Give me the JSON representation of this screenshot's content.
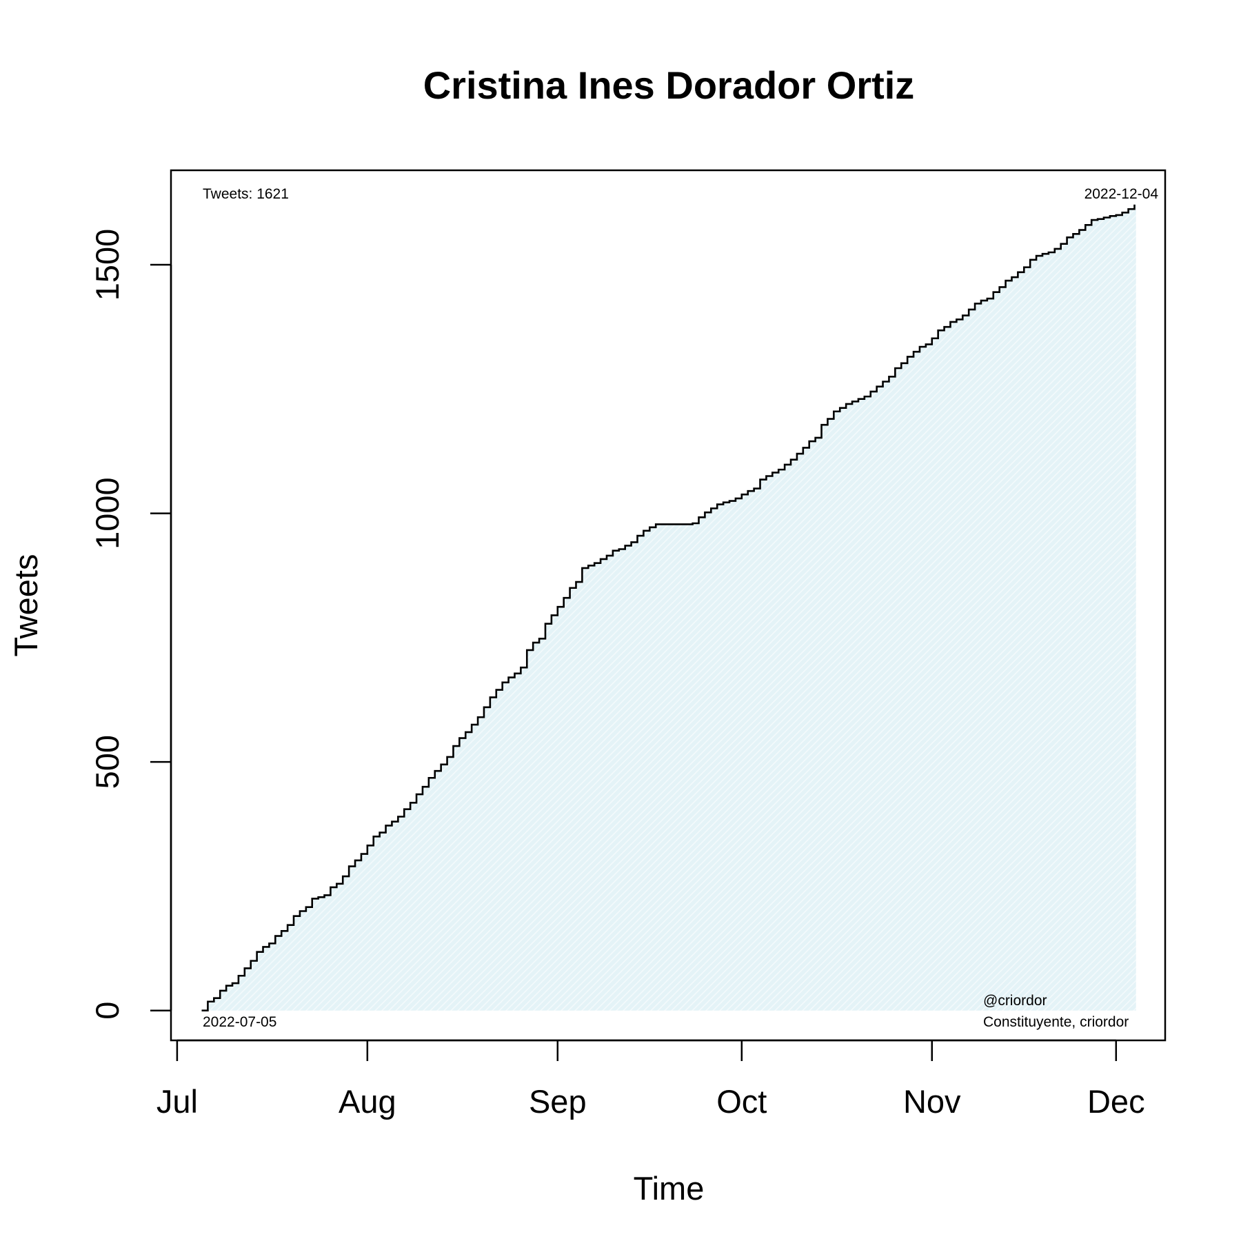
{
  "chart_data": {
    "type": "area",
    "title": "Cristina Ines Dorador Ortiz",
    "xlabel": "Time",
    "ylabel": "Tweets",
    "x_ticks": [
      {
        "label": "Jul",
        "date": "2022-07-01"
      },
      {
        "label": "Aug",
        "date": "2022-08-01"
      },
      {
        "label": "Sep",
        "date": "2022-09-01"
      },
      {
        "label": "Oct",
        "date": "2022-10-01"
      },
      {
        "label": "Nov",
        "date": "2022-11-01"
      },
      {
        "label": "Dec",
        "date": "2022-12-01"
      }
    ],
    "y_ticks": [
      0,
      500,
      1000,
      1500
    ],
    "xlim": [
      "2022-06-30",
      "2022-12-09"
    ],
    "ylim": [
      -60,
      1690
    ],
    "grid": false,
    "line_color": "#000000",
    "fill_color": "#e4f3f7",
    "annotations": {
      "top_left": "Tweets: 1621",
      "top_right": "2022-12-04",
      "bottom_left": "2022-07-05",
      "bottom_right_line1": "@criordor",
      "bottom_right_line2": "Constituyente, criordor"
    },
    "series": [
      {
        "points": [
          [
            "2022-07-05",
            0
          ],
          [
            "2022-07-06",
            18
          ],
          [
            "2022-07-07",
            25
          ],
          [
            "2022-07-08",
            40
          ],
          [
            "2022-07-09",
            50
          ],
          [
            "2022-07-10",
            55
          ],
          [
            "2022-07-11",
            70
          ],
          [
            "2022-07-12",
            85
          ],
          [
            "2022-07-13",
            100
          ],
          [
            "2022-07-14",
            118
          ],
          [
            "2022-07-15",
            128
          ],
          [
            "2022-07-16",
            135
          ],
          [
            "2022-07-17",
            150
          ],
          [
            "2022-07-18",
            160
          ],
          [
            "2022-07-19",
            172
          ],
          [
            "2022-07-20",
            190
          ],
          [
            "2022-07-21",
            200
          ],
          [
            "2022-07-22",
            208
          ],
          [
            "2022-07-23",
            225
          ],
          [
            "2022-07-24",
            228
          ],
          [
            "2022-07-25",
            232
          ],
          [
            "2022-07-26",
            248
          ],
          [
            "2022-07-27",
            255
          ],
          [
            "2022-07-28",
            270
          ],
          [
            "2022-07-29",
            290
          ],
          [
            "2022-07-30",
            302
          ],
          [
            "2022-07-31",
            315
          ],
          [
            "2022-08-01",
            332
          ],
          [
            "2022-08-02",
            350
          ],
          [
            "2022-08-03",
            358
          ],
          [
            "2022-08-04",
            372
          ],
          [
            "2022-08-05",
            380
          ],
          [
            "2022-08-06",
            390
          ],
          [
            "2022-08-07",
            405
          ],
          [
            "2022-08-08",
            418
          ],
          [
            "2022-08-09",
            435
          ],
          [
            "2022-08-10",
            450
          ],
          [
            "2022-08-11",
            468
          ],
          [
            "2022-08-12",
            482
          ],
          [
            "2022-08-13",
            495
          ],
          [
            "2022-08-14",
            510
          ],
          [
            "2022-08-15",
            532
          ],
          [
            "2022-08-16",
            548
          ],
          [
            "2022-08-17",
            560
          ],
          [
            "2022-08-18",
            575
          ],
          [
            "2022-08-19",
            590
          ],
          [
            "2022-08-20",
            610
          ],
          [
            "2022-08-21",
            630
          ],
          [
            "2022-08-22",
            645
          ],
          [
            "2022-08-23",
            660
          ],
          [
            "2022-08-24",
            670
          ],
          [
            "2022-08-25",
            678
          ],
          [
            "2022-08-26",
            690
          ],
          [
            "2022-08-27",
            725
          ],
          [
            "2022-08-28",
            740
          ],
          [
            "2022-08-29",
            748
          ],
          [
            "2022-08-30",
            778
          ],
          [
            "2022-08-31",
            795
          ],
          [
            "2022-09-01",
            812
          ],
          [
            "2022-09-02",
            830
          ],
          [
            "2022-09-03",
            850
          ],
          [
            "2022-09-04",
            862
          ],
          [
            "2022-09-05",
            890
          ],
          [
            "2022-09-06",
            895
          ],
          [
            "2022-09-07",
            900
          ],
          [
            "2022-09-08",
            908
          ],
          [
            "2022-09-09",
            915
          ],
          [
            "2022-09-10",
            925
          ],
          [
            "2022-09-11",
            928
          ],
          [
            "2022-09-12",
            935
          ],
          [
            "2022-09-13",
            942
          ],
          [
            "2022-09-14",
            955
          ],
          [
            "2022-09-15",
            965
          ],
          [
            "2022-09-16",
            972
          ],
          [
            "2022-09-17",
            978
          ],
          [
            "2022-09-18",
            978
          ],
          [
            "2022-09-19",
            978
          ],
          [
            "2022-09-20",
            978
          ],
          [
            "2022-09-21",
            978
          ],
          [
            "2022-09-22",
            978
          ],
          [
            "2022-09-23",
            980
          ],
          [
            "2022-09-24",
            992
          ],
          [
            "2022-09-25",
            1002
          ],
          [
            "2022-09-26",
            1010
          ],
          [
            "2022-09-27",
            1018
          ],
          [
            "2022-09-28",
            1022
          ],
          [
            "2022-09-29",
            1025
          ],
          [
            "2022-09-30",
            1030
          ],
          [
            "2022-10-01",
            1038
          ],
          [
            "2022-10-02",
            1045
          ],
          [
            "2022-10-03",
            1050
          ],
          [
            "2022-10-04",
            1068
          ],
          [
            "2022-10-05",
            1075
          ],
          [
            "2022-10-06",
            1082
          ],
          [
            "2022-10-07",
            1088
          ],
          [
            "2022-10-08",
            1098
          ],
          [
            "2022-10-09",
            1108
          ],
          [
            "2022-10-10",
            1120
          ],
          [
            "2022-10-11",
            1132
          ],
          [
            "2022-10-12",
            1145
          ],
          [
            "2022-10-13",
            1152
          ],
          [
            "2022-10-14",
            1178
          ],
          [
            "2022-10-15",
            1190
          ],
          [
            "2022-10-16",
            1205
          ],
          [
            "2022-10-17",
            1212
          ],
          [
            "2022-10-18",
            1220
          ],
          [
            "2022-10-19",
            1225
          ],
          [
            "2022-10-20",
            1230
          ],
          [
            "2022-10-21",
            1235
          ],
          [
            "2022-10-22",
            1245
          ],
          [
            "2022-10-23",
            1255
          ],
          [
            "2022-10-24",
            1265
          ],
          [
            "2022-10-25",
            1275
          ],
          [
            "2022-10-26",
            1292
          ],
          [
            "2022-10-27",
            1302
          ],
          [
            "2022-10-28",
            1315
          ],
          [
            "2022-10-29",
            1325
          ],
          [
            "2022-10-30",
            1335
          ],
          [
            "2022-10-31",
            1340
          ],
          [
            "2022-11-01",
            1352
          ],
          [
            "2022-11-02",
            1368
          ],
          [
            "2022-11-03",
            1375
          ],
          [
            "2022-11-04",
            1385
          ],
          [
            "2022-11-05",
            1390
          ],
          [
            "2022-11-06",
            1398
          ],
          [
            "2022-11-07",
            1410
          ],
          [
            "2022-11-08",
            1422
          ],
          [
            "2022-11-09",
            1428
          ],
          [
            "2022-11-10",
            1432
          ],
          [
            "2022-11-11",
            1445
          ],
          [
            "2022-11-12",
            1455
          ],
          [
            "2022-11-13",
            1468
          ],
          [
            "2022-11-14",
            1475
          ],
          [
            "2022-11-15",
            1485
          ],
          [
            "2022-11-16",
            1495
          ],
          [
            "2022-11-17",
            1510
          ],
          [
            "2022-11-18",
            1518
          ],
          [
            "2022-11-19",
            1522
          ],
          [
            "2022-11-20",
            1525
          ],
          [
            "2022-11-21",
            1532
          ],
          [
            "2022-11-22",
            1542
          ],
          [
            "2022-11-23",
            1555
          ],
          [
            "2022-11-24",
            1562
          ],
          [
            "2022-11-25",
            1570
          ],
          [
            "2022-11-26",
            1580
          ],
          [
            "2022-11-27",
            1590
          ],
          [
            "2022-11-28",
            1592
          ],
          [
            "2022-11-29",
            1595
          ],
          [
            "2022-11-30",
            1598
          ],
          [
            "2022-12-01",
            1600
          ],
          [
            "2022-12-02",
            1605
          ],
          [
            "2022-12-03",
            1612
          ],
          [
            "2022-12-04",
            1621
          ]
        ]
      }
    ]
  }
}
